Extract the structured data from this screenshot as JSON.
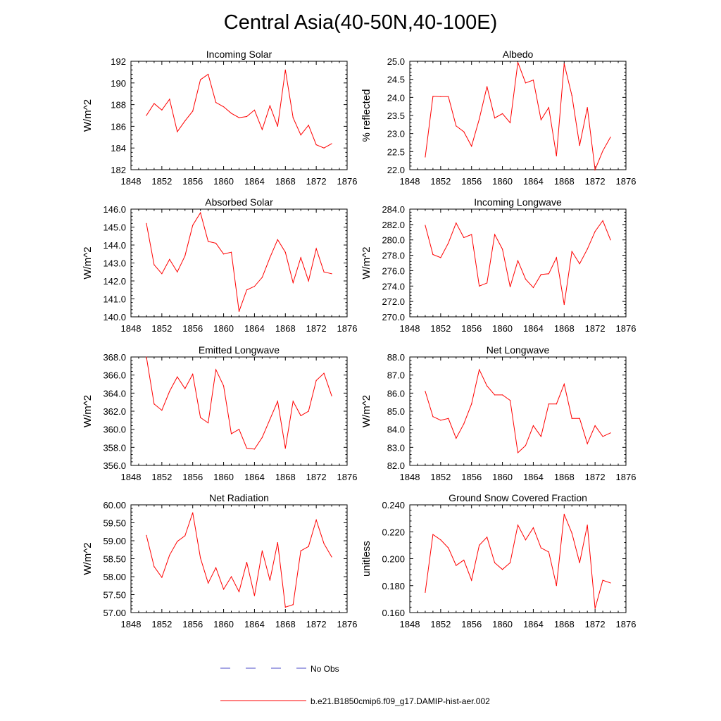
{
  "title": "Central Asia(40-50N,40-100E)",
  "colors": {
    "model": "#ff0000",
    "obs": "#4b4bc8",
    "axis": "#000000"
  },
  "legend": {
    "obs_label": "No Obs",
    "model_label": "b.e21.B1850cmip6.f09_g17.DAMIP-hist-aer.002"
  },
  "chart_data": [
    {
      "type": "line",
      "title": "Incoming Solar",
      "xlabel": "",
      "ylabel": "W/m^2",
      "xlim": [
        1848,
        1876
      ],
      "ylim": [
        182,
        192
      ],
      "decimals": 0,
      "xticks": [
        1848,
        1852,
        1856,
        1860,
        1864,
        1868,
        1872,
        1876
      ],
      "yticks": [
        182,
        184,
        186,
        188,
        190,
        192
      ],
      "series": [
        {
          "x": [
            1850,
            1851,
            1852,
            1853,
            1854,
            1855,
            1856,
            1857,
            1858,
            1859,
            1860,
            1861,
            1862,
            1863,
            1864,
            1865,
            1866,
            1867,
            1868,
            1869,
            1870,
            1871,
            1872,
            1873,
            1874
          ],
          "values": [
            187.0,
            188.1,
            187.5,
            188.5,
            185.5,
            186.5,
            187.4,
            190.3,
            190.8,
            188.2,
            187.8,
            187.2,
            186.8,
            186.9,
            187.5,
            185.7,
            187.9,
            186.0,
            191.2,
            186.8,
            185.2,
            186.1,
            184.3,
            184.0,
            184.4
          ]
        }
      ]
    },
    {
      "type": "line",
      "title": "Albedo",
      "xlabel": "",
      "ylabel": "% reflected",
      "xlim": [
        1848,
        1876
      ],
      "ylim": [
        22.0,
        25.0
      ],
      "decimals": 1,
      "xticks": [
        1848,
        1852,
        1856,
        1860,
        1864,
        1868,
        1872,
        1876
      ],
      "yticks": [
        22.0,
        22.5,
        23.0,
        23.5,
        24.0,
        24.5,
        25.0
      ],
      "series": [
        {
          "x": [
            1850,
            1851,
            1852,
            1853,
            1854,
            1855,
            1856,
            1857,
            1858,
            1859,
            1860,
            1861,
            1862,
            1863,
            1864,
            1865,
            1866,
            1867,
            1868,
            1869,
            1870,
            1871,
            1872,
            1873,
            1874
          ],
          "values": [
            22.35,
            24.03,
            24.02,
            24.02,
            23.21,
            23.05,
            22.65,
            23.4,
            24.3,
            23.43,
            23.55,
            23.3,
            24.97,
            24.4,
            24.48,
            23.38,
            23.72,
            22.38,
            24.93,
            24.05,
            22.67,
            23.72,
            22.0,
            22.52,
            22.9
          ]
        }
      ]
    },
    {
      "type": "line",
      "title": "Absorbed Solar",
      "xlabel": "",
      "ylabel": "W/m^2",
      "xlim": [
        1848,
        1876
      ],
      "ylim": [
        140.0,
        146.0
      ],
      "decimals": 1,
      "xticks": [
        1848,
        1852,
        1856,
        1860,
        1864,
        1868,
        1872,
        1876
      ],
      "yticks": [
        140.0,
        141.0,
        142.0,
        143.0,
        144.0,
        145.0,
        146.0
      ],
      "series": [
        {
          "x": [
            1850,
            1851,
            1852,
            1853,
            1854,
            1855,
            1856,
            1857,
            1858,
            1859,
            1860,
            1861,
            1862,
            1863,
            1864,
            1865,
            1866,
            1867,
            1868,
            1869,
            1870,
            1871,
            1872,
            1873,
            1874
          ],
          "values": [
            145.2,
            142.9,
            142.4,
            143.2,
            142.5,
            143.4,
            145.1,
            145.8,
            144.2,
            144.1,
            143.5,
            143.6,
            140.3,
            141.5,
            141.7,
            142.2,
            143.3,
            144.3,
            143.6,
            141.9,
            143.3,
            142.0,
            143.8,
            142.5,
            142.4
          ]
        }
      ]
    },
    {
      "type": "line",
      "title": "Incoming Longwave",
      "xlabel": "",
      "ylabel": "W/m^2",
      "xlim": [
        1848,
        1876
      ],
      "ylim": [
        270.0,
        284.0
      ],
      "decimals": 1,
      "xticks": [
        1848,
        1852,
        1856,
        1860,
        1864,
        1868,
        1872,
        1876
      ],
      "yticks": [
        270.0,
        272.0,
        274.0,
        276.0,
        278.0,
        280.0,
        282.0,
        284.0
      ],
      "series": [
        {
          "x": [
            1850,
            1851,
            1852,
            1853,
            1854,
            1855,
            1856,
            1857,
            1858,
            1859,
            1860,
            1861,
            1862,
            1863,
            1864,
            1865,
            1866,
            1867,
            1868,
            1869,
            1870,
            1871,
            1872,
            1873,
            1874
          ],
          "values": [
            281.9,
            278.1,
            277.7,
            279.6,
            282.2,
            280.3,
            280.7,
            274.0,
            274.4,
            280.7,
            278.8,
            273.9,
            277.3,
            274.9,
            273.8,
            275.5,
            275.6,
            277.7,
            271.6,
            278.5,
            276.9,
            278.8,
            281.1,
            282.5,
            280.0
          ]
        }
      ]
    },
    {
      "type": "line",
      "title": "Emitted Longwave",
      "xlabel": "",
      "ylabel": "W/m^2",
      "xlim": [
        1848,
        1876
      ],
      "ylim": [
        356.0,
        368.0
      ],
      "decimals": 1,
      "xticks": [
        1848,
        1852,
        1856,
        1860,
        1864,
        1868,
        1872,
        1876
      ],
      "yticks": [
        356.0,
        358.0,
        360.0,
        362.0,
        364.0,
        366.0,
        368.0
      ],
      "series": [
        {
          "x": [
            1850,
            1851,
            1852,
            1853,
            1854,
            1855,
            1856,
            1857,
            1858,
            1859,
            1860,
            1861,
            1862,
            1863,
            1864,
            1865,
            1866,
            1867,
            1868,
            1869,
            1870,
            1871,
            1872,
            1873,
            1874
          ],
          "values": [
            368.0,
            362.8,
            362.1,
            364.2,
            365.8,
            364.5,
            366.1,
            361.3,
            360.7,
            366.6,
            364.8,
            359.5,
            360.0,
            357.9,
            357.8,
            359.1,
            361.1,
            363.1,
            357.9,
            363.1,
            361.5,
            362.0,
            365.4,
            366.2,
            363.7
          ]
        }
      ]
    },
    {
      "type": "line",
      "title": "Net Longwave",
      "xlabel": "",
      "ylabel": "W/m^2",
      "xlim": [
        1848,
        1876
      ],
      "ylim": [
        82.0,
        88.0
      ],
      "decimals": 1,
      "xticks": [
        1848,
        1852,
        1856,
        1860,
        1864,
        1868,
        1872,
        1876
      ],
      "yticks": [
        82.0,
        83.0,
        84.0,
        85.0,
        86.0,
        87.0,
        88.0
      ],
      "series": [
        {
          "x": [
            1850,
            1851,
            1852,
            1853,
            1854,
            1855,
            1856,
            1857,
            1858,
            1859,
            1860,
            1861,
            1862,
            1863,
            1864,
            1865,
            1866,
            1867,
            1868,
            1869,
            1870,
            1871,
            1872,
            1873,
            1874
          ],
          "values": [
            86.1,
            84.7,
            84.5,
            84.6,
            83.5,
            84.3,
            85.4,
            87.3,
            86.4,
            85.9,
            85.9,
            85.6,
            82.7,
            83.1,
            84.2,
            83.6,
            85.4,
            85.4,
            86.5,
            84.6,
            84.6,
            83.2,
            84.2,
            83.6,
            83.8
          ]
        }
      ]
    },
    {
      "type": "line",
      "title": "Net Radiation",
      "xlabel": "",
      "ylabel": "W/m^2",
      "xlim": [
        1848,
        1876
      ],
      "ylim": [
        57.0,
        60.0
      ],
      "decimals": 2,
      "xticks": [
        1848,
        1852,
        1856,
        1860,
        1864,
        1868,
        1872,
        1876
      ],
      "yticks": [
        57.0,
        57.5,
        58.0,
        58.5,
        59.0,
        59.5,
        60.0
      ],
      "series": [
        {
          "x": [
            1850,
            1851,
            1852,
            1853,
            1854,
            1855,
            1856,
            1857,
            1858,
            1859,
            1860,
            1861,
            1862,
            1863,
            1864,
            1865,
            1866,
            1867,
            1868,
            1869,
            1870,
            1871,
            1872,
            1873,
            1874
          ],
          "values": [
            59.15,
            58.28,
            57.98,
            58.6,
            58.98,
            59.14,
            59.78,
            58.52,
            57.82,
            58.25,
            57.65,
            58.0,
            57.58,
            58.4,
            57.47,
            58.72,
            57.9,
            58.95,
            57.15,
            57.22,
            58.72,
            58.84,
            59.58,
            58.92,
            58.55
          ]
        }
      ]
    },
    {
      "type": "line",
      "title": "Ground Snow Covered Fraction",
      "xlabel": "",
      "ylabel": "unitless",
      "xlim": [
        1848,
        1876
      ],
      "ylim": [
        0.16,
        0.24
      ],
      "decimals": 3,
      "xticks": [
        1848,
        1852,
        1856,
        1860,
        1864,
        1868,
        1872,
        1876
      ],
      "yticks": [
        0.16,
        0.18,
        0.2,
        0.22,
        0.24
      ],
      "series": [
        {
          "x": [
            1850,
            1851,
            1852,
            1853,
            1854,
            1855,
            1856,
            1857,
            1858,
            1859,
            1860,
            1861,
            1862,
            1863,
            1864,
            1865,
            1866,
            1867,
            1868,
            1869,
            1870,
            1871,
            1872,
            1873,
            1874
          ],
          "values": [
            0.175,
            0.218,
            0.214,
            0.208,
            0.195,
            0.199,
            0.184,
            0.21,
            0.216,
            0.197,
            0.192,
            0.197,
            0.225,
            0.214,
            0.223,
            0.208,
            0.205,
            0.18,
            0.233,
            0.219,
            0.197,
            0.225,
            0.163,
            0.184,
            0.182
          ]
        }
      ]
    }
  ]
}
